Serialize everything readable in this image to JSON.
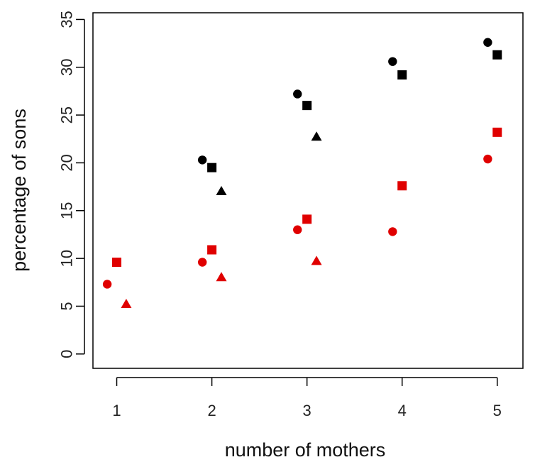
{
  "chart_data": {
    "type": "scatter",
    "title": "",
    "xlabel": "number of mothers",
    "ylabel": "percentage of sons",
    "xlim": [
      0.75,
      5.27
    ],
    "ylim": [
      -1.5,
      35.7
    ],
    "xticks": [
      1,
      2,
      3,
      4,
      5
    ],
    "yticks": [
      0,
      5,
      10,
      15,
      20,
      25,
      30,
      35
    ],
    "grid": false,
    "legend": "none",
    "colors": {
      "black": "#000000",
      "red": "#e00000"
    },
    "series": [
      {
        "color": "black",
        "marker": "circle",
        "points": [
          [
            1.9,
            20.3
          ],
          [
            2.9,
            27.2
          ],
          [
            3.9,
            30.6
          ],
          [
            4.9,
            32.6
          ]
        ]
      },
      {
        "color": "black",
        "marker": "square",
        "points": [
          [
            2.0,
            19.5
          ],
          [
            3.0,
            26.0
          ],
          [
            4.0,
            29.2
          ],
          [
            5.0,
            31.3
          ]
        ]
      },
      {
        "color": "black",
        "marker": "triangle",
        "points": [
          [
            2.1,
            17.0
          ],
          [
            3.1,
            22.7
          ]
        ]
      },
      {
        "color": "red",
        "marker": "circle",
        "points": [
          [
            0.9,
            7.3
          ],
          [
            1.9,
            9.6
          ],
          [
            2.9,
            13.0
          ],
          [
            3.9,
            12.8
          ],
          [
            4.9,
            20.4
          ]
        ]
      },
      {
        "color": "red",
        "marker": "square",
        "points": [
          [
            1.0,
            9.6
          ],
          [
            2.0,
            10.9
          ],
          [
            3.0,
            14.1
          ],
          [
            4.0,
            17.6
          ],
          [
            5.0,
            23.2
          ]
        ]
      },
      {
        "color": "red",
        "marker": "triangle",
        "points": [
          [
            1.1,
            5.2
          ],
          [
            2.1,
            8.0
          ],
          [
            3.1,
            9.7
          ]
        ]
      }
    ]
  }
}
